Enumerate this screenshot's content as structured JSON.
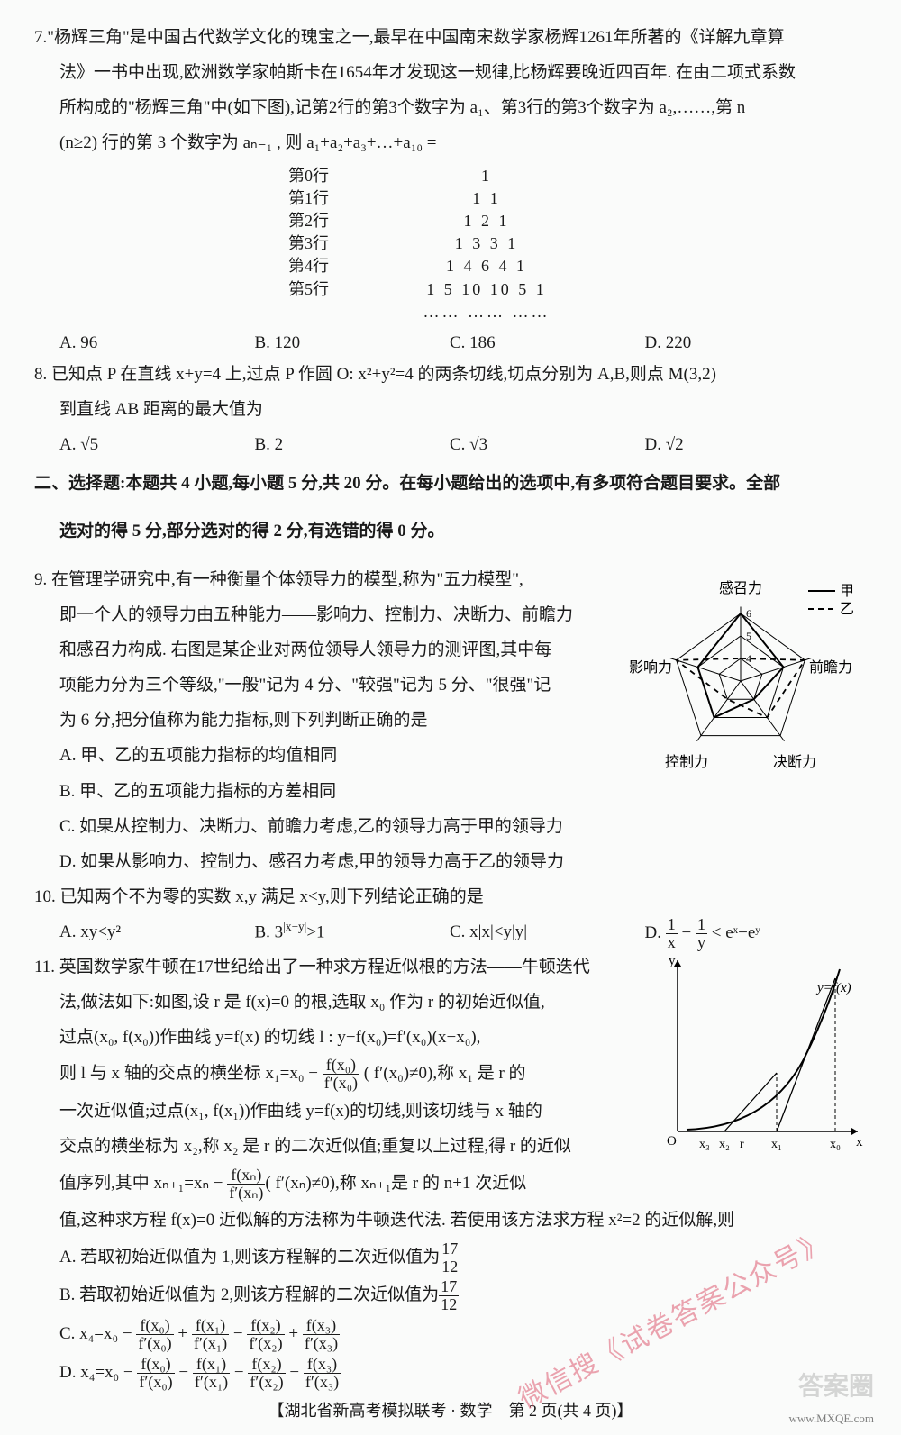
{
  "q7": {
    "text_l1": "7.\"杨辉三角\"是中国古代数学文化的瑰宝之一,最早在中国南宋数学家杨辉1261年所著的《详解九章算",
    "text_l2": "法》一书中出现,欧洲数学家帕斯卡在1654年才发现这一规律,比杨辉要晚近四百年. 在由二项式系数",
    "text_l3": "所构成的\"杨辉三角\"中(如下图),记第2行的第3个数字为 a₁、第3行的第3个数字为 a₂,……,第 n",
    "text_l4": "(n≥2) 行的第 3 个数字为 aₙ₋₁ , 则 a₁+a₂+a₃+…+a₁₀ =",
    "pascal": {
      "rows": [
        {
          "label": "第0行",
          "nums": "1"
        },
        {
          "label": "第1行",
          "nums": "1   1"
        },
        {
          "label": "第2行",
          "nums": "1   2   1"
        },
        {
          "label": "第3行",
          "nums": "1   3   3   1"
        },
        {
          "label": "第4行",
          "nums": "1   4   6   4   1"
        },
        {
          "label": "第5行",
          "nums": "1   5   10   10   5   1"
        },
        {
          "label": "",
          "nums": "……   ……   ……"
        }
      ]
    },
    "opts": {
      "A": "A. 96",
      "B": "B. 120",
      "C": "C. 186",
      "D": "D. 220"
    }
  },
  "q8": {
    "text_l1": "8. 已知点 P 在直线 x+y=4 上,过点 P 作圆 O: x²+y²=4 的两条切线,切点分别为 A,B,则点 M(3,2)",
    "text_l2": "到直线 AB 距离的最大值为",
    "opts": {
      "A": "A. √5",
      "B": "B. 2",
      "C": "C. √3",
      "D": "D. √2"
    }
  },
  "section2": {
    "l1": "二、选择题:本题共 4 小题,每小题 5 分,共 20 分。在每小题给出的选项中,有多项符合题目要求。全部",
    "l2": "选对的得 5 分,部分选对的得 2 分,有选错的得 0 分。"
  },
  "q9": {
    "l1": "9. 在管理学研究中,有一种衡量个体领导力的模型,称为\"五力模型\",",
    "l2": "即一个人的领导力由五种能力——影响力、控制力、决断力、前瞻力",
    "l3": "和感召力构成. 右图是某企业对两位领导人领导力的测评图,其中每",
    "l4": "项能力分为三个等级,\"一般\"记为 4 分、\"较强\"记为 5 分、\"很强\"记",
    "l5": "为 6 分,把分值称为能力指标,则下列判断正确的是",
    "oA": "A. 甲、乙的五项能力指标的均值相同",
    "oB": "B. 甲、乙的五项能力指标的方差相同",
    "oC": "C. 如果从控制力、决断力、前瞻力考虑,乙的领导力高于甲的领导力",
    "oD": "D. 如果从影响力、控制力、感召力考虑,甲的领导力高于乙的领导力",
    "radar": {
      "axes": [
        "感召力",
        "前瞻力",
        "决断力",
        "控制力",
        "影响力"
      ],
      "legend_jia": "甲",
      "legend_yi": "乙",
      "ticks": [
        4,
        5,
        6
      ],
      "jia": [
        6,
        5,
        4,
        5,
        5
      ],
      "yi": [
        4,
        6,
        5,
        4,
        6
      ],
      "color": "#000000"
    }
  },
  "q10": {
    "text": "10. 已知两个不为零的实数 x,y 满足 x<y,则下列结论正确的是",
    "opts": {
      "A": "A. xy<y²",
      "B": "B. 3^{|x-y|}>1",
      "C": "C. x|x|<y|y|",
      "D_prefix": "D. ",
      "D_n1": "1",
      "D_d1": "x",
      "D_n2": "1",
      "D_d2": "y",
      "D_suffix": " < eˣ−eʸ"
    }
  },
  "q11": {
    "l1": "11. 英国数学家牛顿在17世纪给出了一种求方程近似根的方法——牛顿迭代",
    "l2": "法,做法如下:如图,设 r 是 f(x)=0 的根,选取 x₀ 作为 r 的初始近似值,",
    "l3": "过点(x₀, f(x₀))作曲线 y=f(x) 的切线 l : y−f(x₀)=f′(x₀)(x−x₀),",
    "l4_p1": "则 l 与 x 轴的交点的横坐标 x₁=x₀ − ",
    "l4_fn": "f(x₀)",
    "l4_fd": "f′(x₀)",
    "l4_p2": " ( f′(x₀)≠0),称 x₁ 是 r 的",
    "l5": "一次近似值;过点(x₁, f(x₁))作曲线 y=f(x)的切线,则该切线与 x 轴的",
    "l6": "交点的横坐标为 x₂,称 x₂ 是 r 的二次近似值;重复以上过程,得 r 的近似",
    "l7_p1": "值序列,其中 xₙ₊₁=xₙ − ",
    "l7_fn": "f(xₙ)",
    "l7_fd": "f′(xₙ)",
    "l7_p2": "( f′(xₙ)≠0),称 xₙ₊₁是 r 的 n+1 次近似",
    "l8": "值,这种求方程 f(x)=0 近似解的方法称为牛顿迭代法. 若使用该方法求方程 x²=2 的近似解,则",
    "oA_p1": "A. 若取初始近似值为 1,则该方程解的二次近似值为",
    "oA_fn": "17",
    "oA_fd": "12",
    "oB_p1": "B. 若取初始近似值为 2,则该方程解的二次近似值为",
    "oB_fn": "17",
    "oB_fd": "12",
    "oC_p1": "C. x₄=x₀ − ",
    "oC_t0n": "f(x₀)",
    "oC_t0d": "f′(x₀)",
    "oC_t1n": "f(x₁)",
    "oC_t1d": "f′(x₁)",
    "oC_t2n": "f(x₂)",
    "oC_t2d": "f′(x₂)",
    "oC_t3n": "f(x₃)",
    "oC_t3d": "f′(x₃)",
    "oC_s1": " + ",
    "oC_s2": " − ",
    "oC_s3": " + ",
    "oD_p1": "D. x₄=x₀ − ",
    "oD_s": " − ",
    "fig": {
      "ylabel": "y",
      "xlabel": "x",
      "curve_label": "y=f(x)",
      "x_ticks": [
        "x₃",
        "x₂",
        "r",
        "x₁",
        "x₀"
      ],
      "origin": "O",
      "color": "#000000"
    }
  },
  "footer": "【湖北省新高考模拟联考 · 数学　第 2 页(共 4 页)】",
  "watermarks": {
    "red": "微信搜《试卷答案公众号》",
    "grey": "答案圈",
    "url": "www.MXQE.com"
  }
}
